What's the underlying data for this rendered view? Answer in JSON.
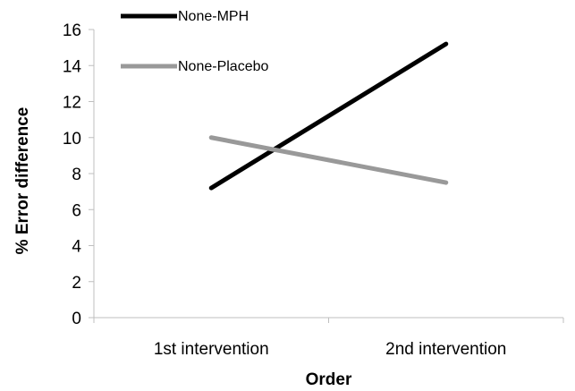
{
  "chart_data": {
    "type": "line",
    "categories": [
      "1st intervention",
      "2nd intervention"
    ],
    "series": [
      {
        "name": "None-MPH",
        "values": [
          7.2,
          15.2
        ],
        "color": "#000000"
      },
      {
        "name": "None-Placebo",
        "values": [
          10.0,
          7.5
        ],
        "color": "#999999"
      }
    ],
    "title": "",
    "xlabel": "Order",
    "ylabel": "% Error difference",
    "ylim": [
      0,
      16
    ],
    "yticks": [
      "0",
      "2",
      "4",
      "6",
      "8",
      "10",
      "12",
      "14",
      "16"
    ],
    "grid": false,
    "legend": "top-left"
  }
}
